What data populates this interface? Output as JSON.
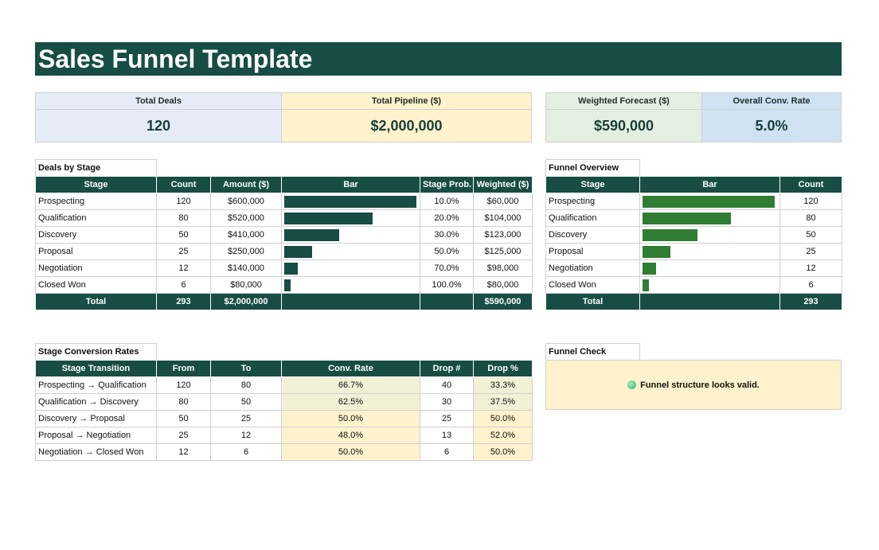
{
  "title": "Sales Funnel Template",
  "kpis": [
    {
      "label": "Total Deals",
      "value": "120",
      "bg": "#e6ecf7"
    },
    {
      "label": "Total Pipeline ($)",
      "value": "$2,000,000",
      "bg": "#fff2cc"
    },
    {
      "label": "Weighted Forecast ($)",
      "value": "$590,000",
      "bg": "#e3efe0"
    },
    {
      "label": "Overall Conv. Rate",
      "value": "5.0%",
      "bg": "#cfe2f3"
    }
  ],
  "deals_by_stage": {
    "title": "Deals by Stage",
    "headers": [
      "Stage",
      "Count",
      "Amount ($)",
      "Bar",
      "Stage Prob.",
      "Weighted ($)"
    ],
    "bar_color": "#174d44",
    "bar_max": 120,
    "rows": [
      {
        "stage": "Prospecting",
        "count": "120",
        "amount": "$600,000",
        "bar": 120,
        "prob": "10.0%",
        "weighted": "$60,000"
      },
      {
        "stage": "Qualification",
        "count": "80",
        "amount": "$520,000",
        "bar": 80,
        "prob": "20.0%",
        "weighted": "$104,000"
      },
      {
        "stage": "Discovery",
        "count": "50",
        "amount": "$410,000",
        "bar": 50,
        "prob": "30.0%",
        "weighted": "$123,000"
      },
      {
        "stage": "Proposal",
        "count": "25",
        "amount": "$250,000",
        "bar": 25,
        "prob": "50.0%",
        "weighted": "$125,000"
      },
      {
        "stage": "Negotiation",
        "count": "12",
        "amount": "$140,000",
        "bar": 12,
        "prob": "70.0%",
        "weighted": "$98,000"
      },
      {
        "stage": "Closed Won",
        "count": "6",
        "amount": "$80,000",
        "bar": 6,
        "prob": "100.0%",
        "weighted": "$80,000"
      }
    ],
    "total": {
      "label": "Total",
      "count": "293",
      "amount": "$2,000,000",
      "weighted": "$590,000"
    }
  },
  "funnel_overview": {
    "title": "Funnel Overview",
    "headers": [
      "Stage",
      "Bar",
      "Count"
    ],
    "bar_color": "#2e7d32",
    "bar_max": 120,
    "rows": [
      {
        "stage": "Prospecting",
        "bar": 120,
        "count": "120"
      },
      {
        "stage": "Qualification",
        "bar": 80,
        "count": "80"
      },
      {
        "stage": "Discovery",
        "bar": 50,
        "count": "50"
      },
      {
        "stage": "Proposal",
        "bar": 25,
        "count": "25"
      },
      {
        "stage": "Negotiation",
        "bar": 12,
        "count": "12"
      },
      {
        "stage": "Closed Won",
        "bar": 6,
        "count": "6"
      }
    ],
    "total": {
      "label": "Total",
      "count": "293"
    }
  },
  "conversion": {
    "title": "Stage Conversion Rates",
    "headers": [
      "Stage Transition",
      "From",
      "To",
      "Conv. Rate",
      "Drop #",
      "Drop %"
    ],
    "rows": [
      {
        "transition": "Prospecting → Qualification",
        "from": "120",
        "to": "80",
        "rate": "66.7%",
        "drop": "40",
        "drop_pct": "33.3%",
        "highlight": "#f2f0d5"
      },
      {
        "transition": "Qualification → Discovery",
        "from": "80",
        "to": "50",
        "rate": "62.5%",
        "drop": "30",
        "drop_pct": "37.5%",
        "highlight": "#f2f0d5"
      },
      {
        "transition": "Discovery → Proposal",
        "from": "50",
        "to": "25",
        "rate": "50.0%",
        "drop": "25",
        "drop_pct": "50.0%",
        "highlight": "#fff2cc"
      },
      {
        "transition": "Proposal → Negotiation",
        "from": "25",
        "to": "12",
        "rate": "48.0%",
        "drop": "13",
        "drop_pct": "52.0%",
        "highlight": "#fff2cc"
      },
      {
        "transition": "Negotiation → Closed Won",
        "from": "12",
        "to": "6",
        "rate": "50.0%",
        "drop": "6",
        "drop_pct": "50.0%",
        "highlight": "#fff2cc"
      }
    ]
  },
  "funnel_check": {
    "title": "Funnel Check",
    "icon": "green-circle-icon",
    "message": "Funnel structure looks valid."
  }
}
